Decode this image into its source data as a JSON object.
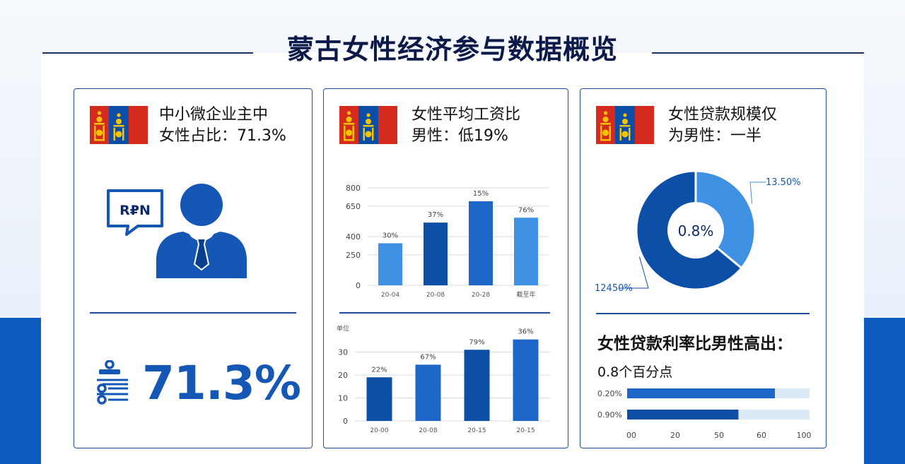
{
  "title": "蒙古女性经济参与数据概览",
  "colors": {
    "dark": "#0d4ea6",
    "mid": "#1f66c9",
    "light": "#3f91e3",
    "track": "#dce9f7",
    "band": "#0d5bbf"
  },
  "cards": [
    {
      "heading": [
        "中小微企业主中",
        "女性占比：71.3%"
      ],
      "bubble_text": "R₽N",
      "big_value": "71.3%",
      "icons": [
        "mongolia-flag-icon",
        "speech-bubble-icon",
        "businessman-icon",
        "ledger-icon"
      ]
    },
    {
      "heading": [
        "女性平均工资比",
        "男性：低19%"
      ]
    },
    {
      "heading": [
        "女性贷款规模仅",
        "为男性：一半"
      ],
      "loan_heading": "女性贷款利率比男性高出：",
      "loan_sub": "0.8个百分点"
    }
  ],
  "chart_data": [
    {
      "type": "bar",
      "yticks": [
        "800",
        "650",
        "400",
        "250",
        "0"
      ],
      "ylim": [
        0,
        800
      ],
      "categories": [
        "20-04",
        "20-08",
        "20-28",
        "截至年"
      ],
      "values": [
        345,
        515,
        690,
        555
      ],
      "data_labels": [
        "30%",
        "37%",
        "15%",
        "76%"
      ]
    },
    {
      "type": "bar",
      "ylabel": "单位",
      "yticks": [
        "30",
        "20",
        "10",
        "0"
      ],
      "ylim": [
        0,
        40
      ],
      "categories": [
        "20-00",
        "20-08",
        "20-15",
        "20-15"
      ],
      "values": [
        19,
        24.5,
        31,
        35.5
      ],
      "data_labels": [
        "22%",
        "67%",
        "79%",
        "36%"
      ]
    },
    {
      "type": "pie",
      "center_label": "0.8%",
      "slices": [
        {
          "label": "13.50%",
          "value": 36
        },
        {
          "label": "12450%",
          "value": 64
        }
      ]
    },
    {
      "type": "bar",
      "orientation": "horizontal",
      "bars": [
        {
          "label": "0.20%",
          "value": 81
        },
        {
          "label": "0.90%",
          "value": 61
        }
      ],
      "xticks": [
        "00",
        "20",
        "50",
        "60",
        "100"
      ],
      "xlim": [
        0,
        100
      ]
    }
  ]
}
